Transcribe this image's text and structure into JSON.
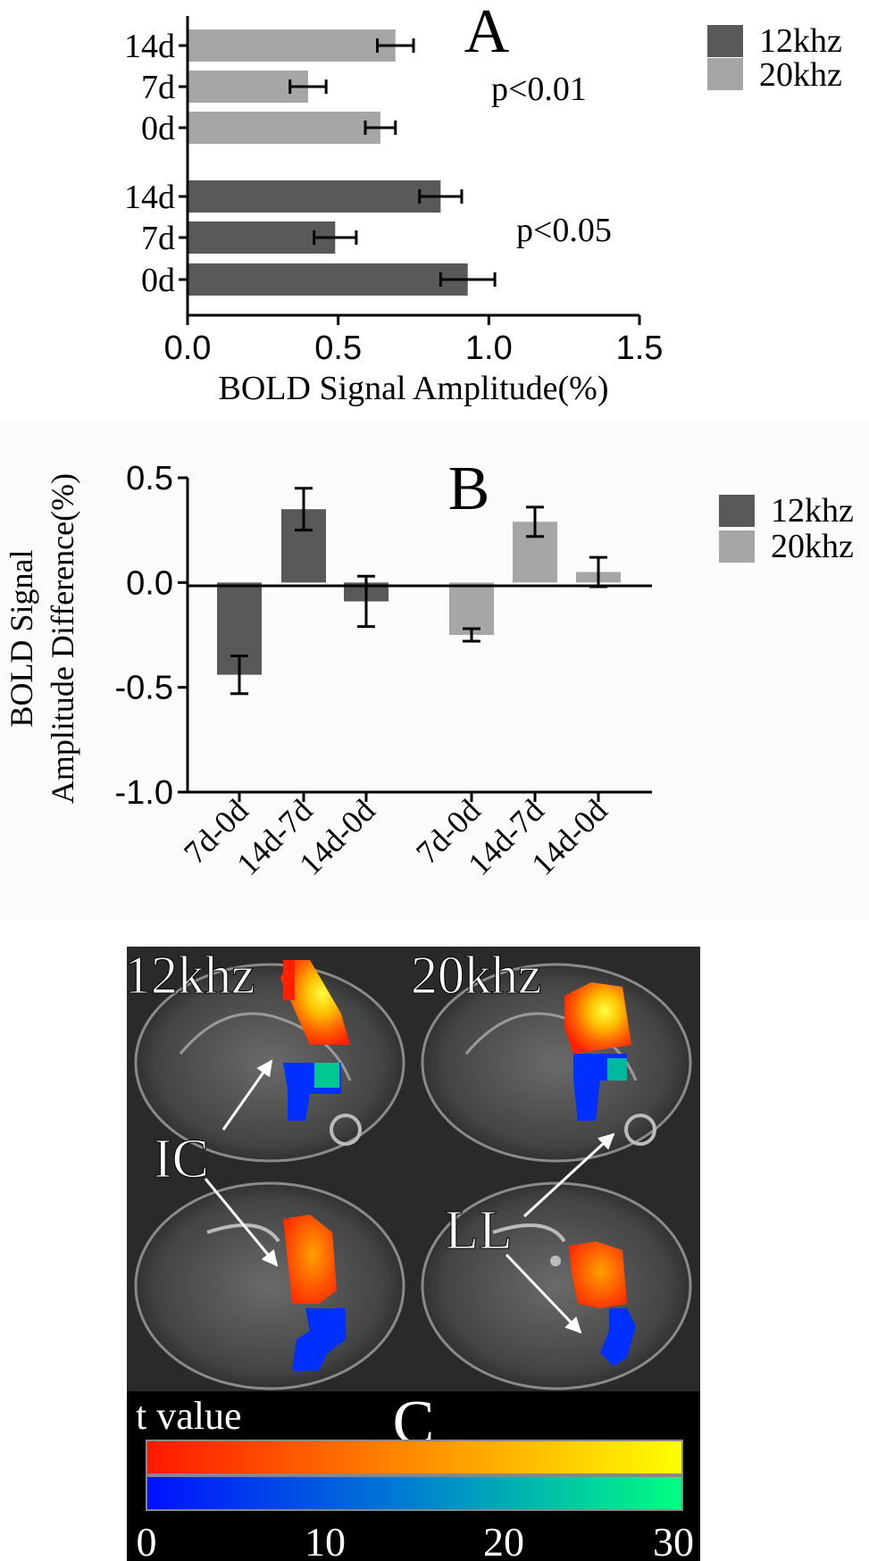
{
  "chart_data": [
    {
      "type": "bar",
      "orientation": "horizontal",
      "panel_label": "A",
      "xlabel": "BOLD Signal Amplitude(%)",
      "xlim": [
        0.0,
        1.5
      ],
      "xticks": [
        "0.0",
        "0.5",
        "1.0",
        "1.5"
      ],
      "categories": [
        "0d",
        "7d",
        "14d"
      ],
      "series": [
        {
          "name": "12khz",
          "color": "#595959",
          "values": [
            0.93,
            0.49,
            0.84
          ],
          "errors": [
            0.09,
            0.07,
            0.07
          ],
          "annotation": "p<0.05"
        },
        {
          "name": "20khz",
          "color": "#a6a6a6",
          "values": [
            0.64,
            0.4,
            0.69
          ],
          "errors": [
            0.05,
            0.06,
            0.06
          ],
          "annotation": "p<0.01"
        }
      ],
      "legend": [
        "12khz",
        "20khz"
      ]
    },
    {
      "type": "bar",
      "panel_label": "B",
      "ylabel_line1": "BOLD Signal",
      "ylabel_line2": "Amplitude Difference(%)",
      "ylim": [
        -1.0,
        0.5
      ],
      "yticks": [
        "0.5",
        "0.0",
        "-0.5",
        "-1.0"
      ],
      "categories": [
        "7d-0d",
        "14d-7d",
        "14d-0d"
      ],
      "series": [
        {
          "name": "12khz",
          "color": "#595959",
          "values": [
            -0.44,
            0.35,
            -0.09
          ],
          "errors": [
            0.09,
            0.1,
            0.12
          ]
        },
        {
          "name": "20khz",
          "color": "#a6a6a6",
          "values": [
            -0.25,
            0.29,
            0.05
          ],
          "errors": [
            0.03,
            0.07,
            0.07
          ]
        }
      ],
      "legend": [
        "12khz",
        "20khz"
      ]
    }
  ],
  "panel_c": {
    "panel_label": "C",
    "column_titles": [
      "12khz",
      "20khz"
    ],
    "labels": [
      "IC",
      "LL"
    ],
    "colorbar_title": "t value",
    "colorbar_ticks": [
      "0",
      "10",
      "20",
      "30"
    ]
  }
}
